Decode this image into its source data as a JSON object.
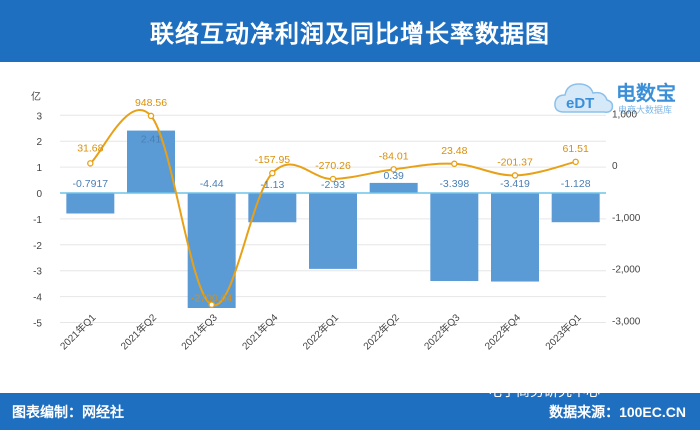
{
  "header": {
    "title": "联络互动净利润及同比增长率数据图"
  },
  "footer": {
    "editor": "图表编制：网经社",
    "source": "数据来源：100EC.CN",
    "wechat": "电子商务研究中心"
  },
  "logo": {
    "brand": "电数宝",
    "tagline": "电商大数据库"
  },
  "colors": {
    "bar": "#5b9bd5",
    "line": "#e8a117",
    "header": "#1f6fc0",
    "bar_label": "#4a7fb5",
    "line_label": "#d9900a"
  },
  "chart_data": {
    "type": "bar+line",
    "categories": [
      "2021年Q1",
      "2021年Q2",
      "2021年Q3",
      "2021年Q4",
      "2022年Q1",
      "2022年Q2",
      "2022年Q3",
      "2022年Q4",
      "2023年Q1"
    ],
    "y_left_label": "亿",
    "y_left_ticks": [
      -5,
      -4,
      -3,
      -2,
      -1,
      0,
      1,
      2,
      3
    ],
    "y_right_ticks": [
      -3000,
      -2000,
      -1000,
      0,
      1000
    ],
    "y_right_tick_labels": [
      "-3,000",
      "-2,000",
      "-1,000",
      "0",
      "1,000"
    ],
    "series": [
      {
        "type": "bar",
        "axis": "left",
        "values": [
          -0.7917,
          2.41,
          -4.44,
          -1.13,
          -2.93,
          0.39,
          -3.398,
          -3.419,
          -1.128
        ],
        "labels": [
          "-0.7917",
          "2.41",
          "-4.44",
          "-1.13",
          "-2.93",
          "0.39",
          "-3.398",
          "-3.419",
          "-1.128"
        ]
      },
      {
        "type": "line",
        "axis": "right",
        "values": [
          31.68,
          948.56,
          -2700,
          -157.95,
          -270.26,
          -84.01,
          23.48,
          -201.37,
          61.51
        ],
        "labels": [
          "31.68",
          "948.56",
          "-2700.04",
          "-157.95",
          "-270.26",
          "-84.01",
          "23.48",
          "-201.37",
          "61.51"
        ]
      }
    ]
  }
}
